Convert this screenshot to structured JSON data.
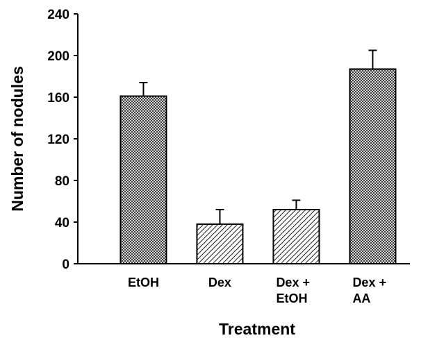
{
  "chart_data": {
    "type": "bar",
    "categories": [
      [
        "EtOH"
      ],
      [
        "Dex"
      ],
      [
        "Dex +",
        "EtOH"
      ],
      [
        "Dex +",
        "AA"
      ]
    ],
    "values": [
      161,
      38,
      52,
      187
    ],
    "errors": [
      13,
      14,
      9,
      18
    ],
    "patterns": [
      "crosshatch",
      "diagonal",
      "diagonal",
      "crosshatch"
    ],
    "xlabel": "Treatment",
    "ylabel": "Number of nodules",
    "ylim": [
      0,
      240
    ],
    "yticks": [
      0,
      40,
      80,
      120,
      160,
      200,
      240
    ],
    "grid": false
  }
}
